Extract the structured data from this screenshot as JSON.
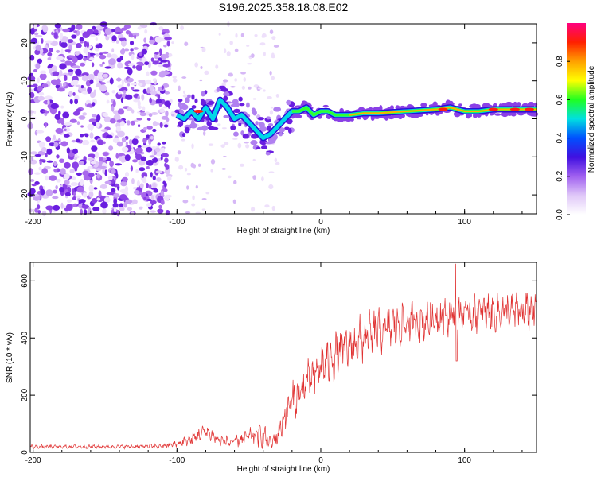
{
  "title": "S196.2025.358.18.08.E02",
  "chart_data": [
    {
      "type": "heatmap",
      "name": "spectrogram",
      "xlabel": "Height of straight line (km)",
      "ylabel": "Frequency (Hz)",
      "xlim": [
        -202,
        150
      ],
      "ylim": [
        -25,
        25
      ],
      "x_ticks": [
        -200,
        -100,
        0,
        100
      ],
      "y_ticks": [
        -20,
        -10,
        0,
        10,
        20
      ],
      "ridge": {
        "x": [
          -100,
          -95,
          -90,
          -85,
          -80,
          -75,
          -70,
          -65,
          -60,
          -55,
          -50,
          -45,
          -40,
          -35,
          -30,
          -25,
          -20,
          -15,
          -10,
          -5,
          0,
          5,
          10,
          15,
          20,
          30,
          40,
          60,
          80,
          90,
          100,
          110,
          120,
          150
        ],
        "freq": [
          1,
          0,
          2,
          0,
          3,
          0,
          5,
          3,
          0,
          1,
          -1,
          -3,
          -5,
          -4,
          -2,
          0,
          2,
          2,
          3,
          1,
          2,
          2,
          1,
          1,
          1,
          1.5,
          1.5,
          2,
          2.5,
          3,
          2,
          2,
          2.5,
          2.5
        ]
      },
      "colorbar": {
        "label": "Normalized spectral amplitude",
        "ticks": [
          "0.0",
          "0.2",
          "0.4",
          "0.6",
          "0.8"
        ],
        "range": [
          0,
          1
        ],
        "colors": [
          "#ffffff",
          "#e0c8f8",
          "#a060f0",
          "#4010e0",
          "#0050ff",
          "#00e0e0",
          "#20ff20",
          "#ffff00",
          "#ffa000",
          "#ff2000",
          "#ff0080"
        ]
      }
    },
    {
      "type": "line",
      "name": "snr",
      "xlabel": "Height of straight line (km)",
      "ylabel": "SNR (10 * v/v)",
      "xlim": [
        -202,
        150
      ],
      "ylim": [
        0,
        665
      ],
      "x_ticks": [
        -200,
        -100,
        0,
        100
      ],
      "y_ticks": [
        0,
        200,
        400,
        600
      ],
      "color": "#e03030",
      "trend": {
        "x": [
          -202,
          -140,
          -110,
          -100,
          -90,
          -80,
          -70,
          -60,
          -50,
          -40,
          -35,
          -30,
          -25,
          -20,
          -15,
          -10,
          -5,
          0,
          10,
          20,
          30,
          40,
          50,
          60,
          70,
          80,
          90,
          100,
          110,
          120,
          130,
          150
        ],
        "y": [
          20,
          20,
          22,
          30,
          45,
          75,
          40,
          35,
          55,
          60,
          30,
          60,
          130,
          180,
          200,
          250,
          260,
          300,
          340,
          370,
          400,
          420,
          440,
          450,
          460,
          470,
          480,
          485,
          490,
          490,
          490,
          495
        ],
        "spread": [
          8,
          8,
          10,
          15,
          25,
          35,
          25,
          25,
          35,
          55,
          30,
          45,
          70,
          80,
          80,
          90,
          95,
          100,
          100,
          100,
          100,
          95,
          90,
          90,
          90,
          80,
          80,
          80,
          80,
          80,
          80,
          80
        ]
      },
      "spike": {
        "x": 94,
        "y_max": 660,
        "y_min": 320
      }
    }
  ]
}
